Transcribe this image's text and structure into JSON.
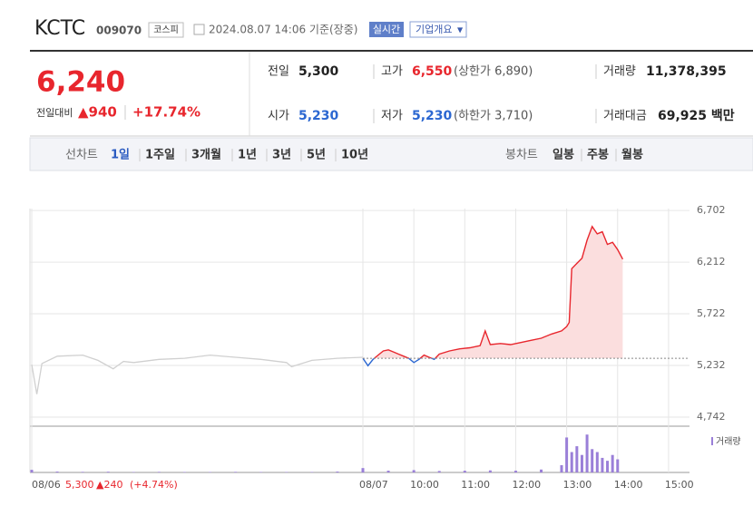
{
  "header": {
    "name": "KCTC",
    "code": "009070",
    "market": "코스피",
    "datetime": "2024.08.07 14:06 기준(장중)",
    "realtime": "실시간",
    "company": "기업개요"
  },
  "quote": {
    "price": "6,240",
    "change_label": "전일대비",
    "change": "▲940",
    "rate": "+17.74%",
    "rows": [
      [
        [
          "전일",
          "5,300",
          ""
        ],
        [
          "고가",
          "6,550",
          "(상한가 6,890)"
        ],
        [
          "거래량",
          "11,378,395",
          ""
        ]
      ],
      [
        [
          "시가",
          "5,230",
          ""
        ],
        [
          "저가",
          "5,230",
          "(하한가 3,710)"
        ],
        [
          "거래대금",
          "69,925 백만",
          ""
        ]
      ]
    ]
  },
  "tabs": {
    "line_label": "선차트",
    "line": [
      "1일",
      "1주일",
      "3개월",
      "1년",
      "3년",
      "5년",
      "10년"
    ],
    "candle_label": "봉차트",
    "candle": [
      "일봉",
      "주봉",
      "월봉"
    ]
  },
  "chart_data": {
    "type": "line",
    "baseline": 5300,
    "ylim": [
      4656,
      6720
    ],
    "yticks": [
      {
        "value": 4742,
        "label": "4,742"
      },
      {
        "value": 5232,
        "label": "5,232"
      },
      {
        "value": 5722,
        "label": "5,722"
      },
      {
        "value": 6212,
        "label": "6,212"
      },
      {
        "value": 6702,
        "label": "6,702"
      }
    ],
    "xlim": [
      0,
      13
    ],
    "xticks": [
      {
        "value": 0,
        "label": "08/06"
      },
      {
        "value": 6.5,
        "label": "08/07"
      },
      {
        "value": 7.5,
        "label": "10:00"
      },
      {
        "value": 8.5,
        "label": "11:00"
      },
      {
        "value": 9.5,
        "label": "12:00"
      },
      {
        "value": 10.5,
        "label": "13:00"
      },
      {
        "value": 11.5,
        "label": "14:00"
      },
      {
        "value": 12.5,
        "label": "15:00"
      }
    ],
    "grid": true,
    "up_color": "#e8262d",
    "down_color": "#2b67d1",
    "fill_color": "#fbdede",
    "series": [
      {
        "color": "#d0d0d0",
        "x": [
          0,
          0.1,
          0.2,
          0.5,
          1.0,
          1.3,
          1.6,
          1.8,
          2.0,
          2.5,
          3.0,
          3.5,
          4.0,
          4.5,
          5.0,
          5.1,
          5.5,
          6.0,
          6.5
        ],
        "values": [
          5240,
          4960,
          5250,
          5320,
          5330,
          5280,
          5200,
          5270,
          5260,
          5290,
          5300,
          5330,
          5310,
          5290,
          5260,
          5220,
          5280,
          5300,
          5310
        ]
      },
      {
        "color": "#e8262d",
        "x": [
          6.5,
          6.6,
          6.7,
          6.8,
          6.9,
          7.0,
          7.1,
          7.2,
          7.3,
          7.4,
          7.5,
          7.6,
          7.7,
          7.8,
          7.9,
          8.0,
          8.2,
          8.4,
          8.6,
          8.8,
          8.9,
          9.0,
          9.2,
          9.4,
          9.6,
          9.8,
          10.0,
          10.2,
          10.4,
          10.5,
          10.55,
          10.6,
          10.7,
          10.8,
          10.9,
          11.0,
          11.1,
          11.2,
          11.3,
          11.4,
          11.5,
          11.6
        ],
        "values": [
          5300,
          5230,
          5290,
          5330,
          5370,
          5380,
          5360,
          5340,
          5320,
          5300,
          5260,
          5290,
          5330,
          5310,
          5290,
          5340,
          5370,
          5390,
          5400,
          5420,
          5560,
          5430,
          5440,
          5430,
          5450,
          5470,
          5490,
          5530,
          5560,
          5600,
          5640,
          6150,
          6200,
          6250,
          6420,
          6550,
          6480,
          6500,
          6380,
          6400,
          6330,
          6240
        ]
      }
    ],
    "volume": {
      "name": "거래량",
      "color": "#9a7fd8",
      "y2lim": [
        0,
        1400000
      ],
      "x": [
        0,
        0.5,
        1,
        1.5,
        2,
        2.5,
        3,
        3.5,
        4,
        4.5,
        5,
        5.5,
        6,
        6.5,
        7,
        7.5,
        8,
        8.5,
        9,
        9.5,
        10,
        10.4,
        10.5,
        10.6,
        10.7,
        10.8,
        10.9,
        11.0,
        11.1,
        11.2,
        11.3,
        11.4,
        11.5
      ],
      "values": [
        90000,
        30000,
        20000,
        25000,
        15000,
        20000,
        15000,
        15000,
        20000,
        15000,
        15000,
        15000,
        30000,
        150000,
        60000,
        80000,
        50000,
        60000,
        70000,
        60000,
        100000,
        250000,
        1200000,
        700000,
        900000,
        600000,
        1300000,
        800000,
        700000,
        500000,
        400000,
        600000,
        450000
      ]
    },
    "footer": {
      "price": "5,300",
      "change": "▲240",
      "rate": "(+4.74%)"
    }
  }
}
